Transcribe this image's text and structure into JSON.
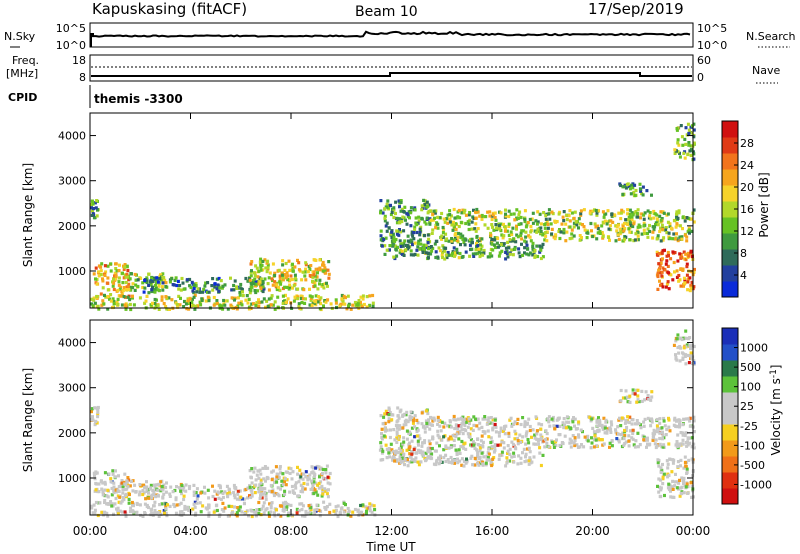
{
  "header": {
    "station": "Kapuskasing (fitACF)",
    "beam": "Beam 10",
    "date": "17/Sep/2019"
  },
  "labels": {
    "nsky": "N.Sky",
    "nsearch": "N.Search",
    "freq_line1": "Freq.",
    "freq_line2": "[MHz]",
    "nave": "Nave",
    "cpid": "CPID",
    "cpid_value": "themis -3300",
    "x_axis": "Time UT",
    "y_axis_power": "Slant Range [km]",
    "y_axis_velocity": "Slant Range [km]"
  },
  "top_axes": {
    "noise_left_ticks": [
      "10^5",
      "10^0"
    ],
    "noise_right_ticks": [
      "10^5",
      "10^0"
    ],
    "freq_ticks": [
      "18",
      "8"
    ],
    "nave_ticks": [
      "60",
      "0"
    ]
  },
  "colors": {
    "power": [
      "#0a2bd9",
      "#22409e",
      "#2f6b5a",
      "#3f9a3f",
      "#66c224",
      "#b2d82a",
      "#f6d32a",
      "#f6a51d",
      "#f2741c",
      "#e03a16",
      "#d01010"
    ],
    "velocity": [
      "#1b2fb8",
      "#2350c8",
      "#2a7a4a",
      "#5cc23a",
      "#c8c8c8",
      "#c8c8c8",
      "#f6d020",
      "#f29a1a",
      "#f07018",
      "#e03010",
      "#d01010"
    ]
  },
  "chart_data": [
    {
      "type": "heatmap",
      "panel": "power",
      "title": "Kapuskasing (fitACF) Beam 10 17/Sep/2019",
      "xlabel": "Time UT",
      "ylabel": "Slant Range [km]",
      "x_ticks": [
        "00:00",
        "04:00",
        "08:00",
        "12:00",
        "16:00",
        "20:00",
        "00:00"
      ],
      "x_range_hours": [
        0,
        24
      ],
      "y_ticks": [
        1000,
        2000,
        3000,
        4000
      ],
      "ylim": [
        180,
        4500
      ],
      "colorbar": {
        "label": "Power [dB]",
        "ticks": [
          4,
          8,
          12,
          16,
          20,
          24,
          28
        ],
        "range": [
          0,
          30
        ]
      },
      "echo_regions": [
        {
          "t": [
            0.0,
            0.3
          ],
          "r": [
            2200,
            2600
          ],
          "level": 0.3
        },
        {
          "t": [
            0.1,
            1.5
          ],
          "r": [
            450,
            1200
          ],
          "level": 0.65
        },
        {
          "t": [
            1.2,
            3.0
          ],
          "r": [
            600,
            1000
          ],
          "level": 0.45
        },
        {
          "t": [
            2.0,
            7.0
          ],
          "r": [
            550,
            900
          ],
          "level": 0.25
        },
        {
          "t": [
            6.3,
            9.5
          ],
          "r": [
            600,
            1300
          ],
          "level": 0.55
        },
        {
          "t": [
            0.0,
            11.3
          ],
          "r": [
            180,
            500
          ],
          "level": 0.5
        },
        {
          "t": [
            11.5,
            13.5
          ],
          "r": [
            1400,
            2600
          ],
          "level": 0.3
        },
        {
          "t": [
            12.0,
            18.0
          ],
          "r": [
            1300,
            1700
          ],
          "level": 0.35
        },
        {
          "t": [
            13.5,
            24.0
          ],
          "r": [
            1700,
            2400
          ],
          "level": 0.45
        },
        {
          "t": [
            21.0,
            22.3
          ],
          "r": [
            2700,
            3000
          ],
          "level": 0.3
        },
        {
          "t": [
            22.5,
            24.0
          ],
          "r": [
            600,
            1500
          ],
          "level": 0.8
        },
        {
          "t": [
            23.2,
            24.0
          ],
          "r": [
            3500,
            4300
          ],
          "level": 0.35
        }
      ]
    },
    {
      "type": "heatmap",
      "panel": "velocity",
      "xlabel": "Time UT",
      "ylabel": "Slant Range [km]",
      "x_ticks": [
        "00:00",
        "04:00",
        "08:00",
        "12:00",
        "16:00",
        "20:00",
        "00:00"
      ],
      "x_range_hours": [
        0,
        24
      ],
      "y_ticks": [
        1000,
        2000,
        3000,
        4000
      ],
      "ylim": [
        180,
        4500
      ],
      "colorbar": {
        "label": "Velocity [m s^-1]",
        "ticks": [
          1000,
          500,
          100,
          25,
          -25,
          -100,
          -500,
          -1000
        ]
      },
      "echo_regions": [
        {
          "t": [
            0.0,
            0.3
          ],
          "r": [
            2200,
            2600
          ],
          "level": 0.5
        },
        {
          "t": [
            0.1,
            1.5
          ],
          "r": [
            450,
            1200
          ],
          "level": 0.65
        },
        {
          "t": [
            1.2,
            3.0
          ],
          "r": [
            600,
            1000
          ],
          "level": 0.5
        },
        {
          "t": [
            2.0,
            7.0
          ],
          "r": [
            550,
            900
          ],
          "level": 0.5
        },
        {
          "t": [
            6.3,
            9.5
          ],
          "r": [
            600,
            1300
          ],
          "level": 0.5
        },
        {
          "t": [
            0.0,
            11.3
          ],
          "r": [
            180,
            500
          ],
          "level": 0.7
        },
        {
          "t": [
            11.5,
            13.5
          ],
          "r": [
            1400,
            2600
          ],
          "level": 0.5
        },
        {
          "t": [
            12.0,
            18.0
          ],
          "r": [
            1300,
            1700
          ],
          "level": 0.5
        },
        {
          "t": [
            13.5,
            24.0
          ],
          "r": [
            1700,
            2400
          ],
          "level": 0.5
        },
        {
          "t": [
            21.0,
            22.3
          ],
          "r": [
            2700,
            3000
          ],
          "level": 0.5
        },
        {
          "t": [
            22.5,
            24.0
          ],
          "r": [
            600,
            1500
          ],
          "level": 0.8
        },
        {
          "t": [
            23.2,
            24.0
          ],
          "r": [
            3500,
            4300
          ],
          "level": 0.5
        }
      ]
    }
  ]
}
